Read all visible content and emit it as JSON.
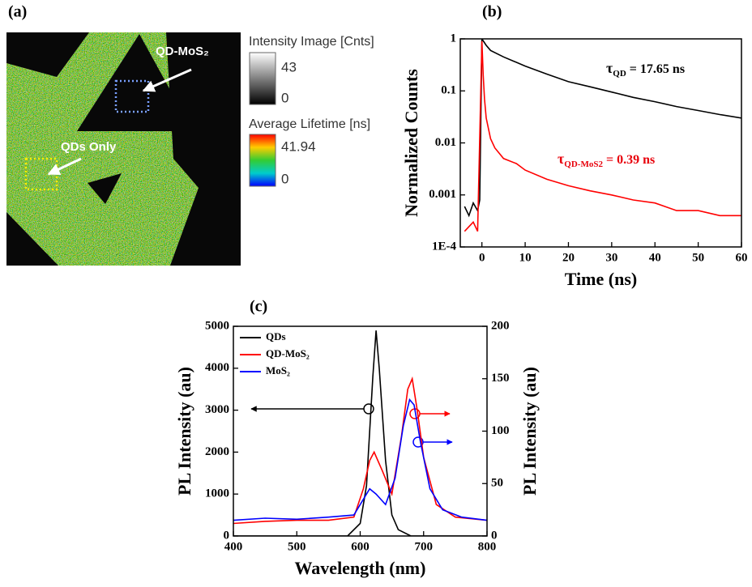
{
  "panel_labels": [
    "(a)",
    "(b)",
    "(c)"
  ],
  "image_panel": {
    "intensity_colorbar": {
      "label": "Intensity Image [Cnts]",
      "max": 43,
      "min": 0
    },
    "lifetime_colorbar": {
      "label": "Average Lifetime [ns]",
      "max": 41.94,
      "min": 0
    },
    "annotations": [
      "QD-MoS₂",
      "QDs Only"
    ]
  },
  "chart_data": [
    {
      "type": "line",
      "log_y": true,
      "xlabel": "Time (ns)",
      "ylabel": "Normalized Counts",
      "xlim": [
        -5,
        60
      ],
      "xticks": [
        0,
        10,
        20,
        30,
        40,
        50,
        60
      ],
      "ylim": [
        0.0001,
        1
      ],
      "yticks": [
        {
          "value": 0.0001,
          "label": "1E-4"
        },
        0.001,
        0.01,
        0.1,
        1
      ],
      "annotations": [
        {
          "symbol": "τ",
          "subscript": "QD",
          "text": " = 17.65 ns",
          "color": "#000000"
        },
        {
          "symbol": "τ",
          "subscript": "QD-MoS2",
          "text": " = 0.39 ns",
          "color": "#e8000b"
        }
      ],
      "series": [
        {
          "color": "#000000",
          "x": [
            -4,
            -3,
            -2,
            -1,
            -0.5,
            0,
            1,
            2,
            5,
            10,
            15,
            20,
            25,
            30,
            35,
            40,
            45,
            50,
            55,
            60
          ],
          "values": [
            0.0006,
            0.0004,
            0.0007,
            0.0005,
            0.0008,
            1,
            0.75,
            0.6,
            0.45,
            0.3,
            0.21,
            0.15,
            0.12,
            0.095,
            0.075,
            0.062,
            0.05,
            0.042,
            0.035,
            0.03
          ]
        },
        {
          "color": "#ff0000",
          "x": [
            -4,
            -2,
            -1,
            0,
            0.3,
            0.6,
            1,
            2,
            3,
            5,
            8,
            10,
            15,
            20,
            25,
            30,
            35,
            40,
            45,
            50,
            55,
            60
          ],
          "values": [
            0.0002,
            0.0003,
            0.0002,
            0.9,
            0.2,
            0.07,
            0.03,
            0.012,
            0.008,
            0.005,
            0.004,
            0.003,
            0.002,
            0.0015,
            0.0012,
            0.001,
            0.0008,
            0.0007,
            0.0005,
            0.0005,
            0.0004,
            0.0004
          ]
        }
      ]
    },
    {
      "type": "line",
      "xlabel": "Wavelength (nm)",
      "ylabel": "PL Intensity (au)",
      "y2label": "PL Intensity (au)",
      "xlim": [
        400,
        800
      ],
      "xticks": [
        400,
        500,
        600,
        700,
        800
      ],
      "ylim": [
        0,
        5000
      ],
      "yticks": [
        0,
        1000,
        2000,
        3000,
        4000,
        5000
      ],
      "y2lim": [
        0,
        200
      ],
      "y2ticks": [
        0,
        50,
        100,
        150,
        200
      ],
      "legend": "upper left",
      "series": [
        {
          "name": "QDs",
          "color": "#000000",
          "x": [
            400,
            500,
            580,
            600,
            610,
            620,
            625,
            630,
            640,
            650,
            660,
            680,
            700,
            800
          ],
          "values": [
            0,
            0,
            0,
            300,
            1200,
            3800,
            4900,
            4000,
            1800,
            500,
            150,
            0,
            0,
            0
          ]
        },
        {
          "name": "QD-MoS₂",
          "color": "#ff0000",
          "axis": "y2",
          "x": [
            400,
            450,
            500,
            550,
            590,
            605,
            615,
            622,
            635,
            650,
            665,
            675,
            682,
            690,
            700,
            720,
            750,
            800
          ],
          "values": [
            12,
            14,
            15,
            15,
            18,
            45,
            72,
            80,
            62,
            40,
            95,
            140,
            150,
            120,
            75,
            30,
            18,
            15
          ]
        },
        {
          "name": "MoS₂",
          "color": "#0000ff",
          "axis": "y2",
          "x": [
            400,
            450,
            500,
            550,
            590,
            605,
            615,
            625,
            640,
            655,
            668,
            678,
            685,
            695,
            710,
            730,
            760,
            800
          ],
          "values": [
            15,
            17,
            16,
            18,
            20,
            35,
            45,
            40,
            30,
            55,
            105,
            130,
            125,
            90,
            45,
            25,
            18,
            15
          ]
        }
      ]
    }
  ]
}
